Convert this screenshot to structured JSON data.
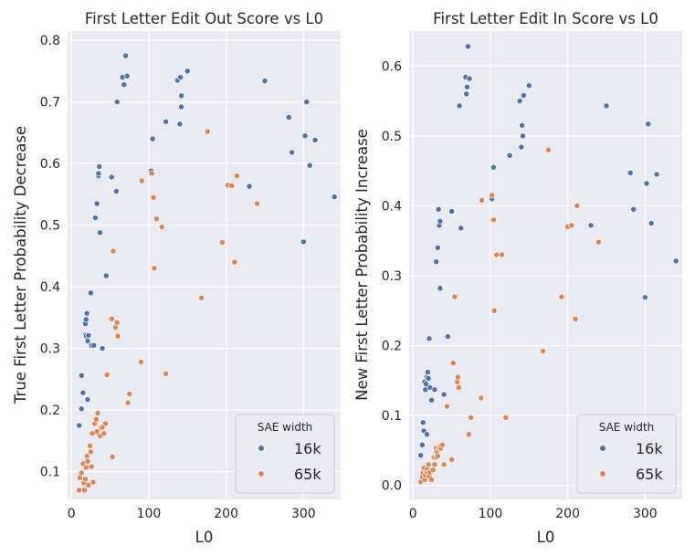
{
  "chart_data": [
    {
      "type": "scatter",
      "title": "First Letter Edit Out Score vs L0",
      "xlabel": "L0",
      "ylabel": "True First Letter Probability Decrease",
      "xlim": [
        -5,
        348
      ],
      "ylim": [
        0.055,
        0.815
      ],
      "xticks": [
        0,
        100,
        200,
        300
      ],
      "yticks": [
        0.1,
        0.2,
        0.3,
        0.4,
        0.5,
        0.6,
        0.7,
        0.8
      ],
      "ytick_labels": [
        "0.1",
        "0.2",
        "0.3",
        "0.4",
        "0.5",
        "0.6",
        "0.7",
        "0.8"
      ],
      "grid": true,
      "legend": {
        "title": "SAE width",
        "placement": "lower-right"
      },
      "series": [
        {
          "name": "16k",
          "color": "#4c72b0",
          "points": [
            [
              10,
              0.175
            ],
            [
              13,
              0.202
            ],
            [
              13,
              0.256
            ],
            [
              15,
              0.228
            ],
            [
              18,
              0.322
            ],
            [
              18,
              0.34
            ],
            [
              19,
              0.347
            ],
            [
              20,
              0.357
            ],
            [
              19,
              0.32
            ],
            [
              21,
              0.312
            ],
            [
              21,
              0.217
            ],
            [
              22,
              0.321
            ],
            [
              25,
              0.39
            ],
            [
              26,
              0.305
            ],
            [
              29,
              0.305
            ],
            [
              31,
              0.512
            ],
            [
              33,
              0.535
            ],
            [
              35,
              0.58
            ],
            [
              35,
              0.584
            ],
            [
              36,
              0.595
            ],
            [
              37,
              0.488
            ],
            [
              40,
              0.3
            ],
            [
              45,
              0.418
            ],
            [
              52,
              0.578
            ],
            [
              58,
              0.555
            ],
            [
              59,
              0.7
            ],
            [
              66,
              0.74
            ],
            [
              68,
              0.728
            ],
            [
              70,
              0.775
            ],
            [
              72,
              0.742
            ],
            [
              103,
              0.588
            ],
            [
              105,
              0.64
            ],
            [
              122,
              0.668
            ],
            [
              137,
              0.735
            ],
            [
              140,
              0.664
            ],
            [
              141,
              0.74
            ],
            [
              142,
              0.71
            ],
            [
              142,
              0.692
            ],
            [
              150,
              0.75
            ],
            [
              230,
              0.563
            ],
            [
              250,
              0.734
            ],
            [
              281,
              0.675
            ],
            [
              285,
              0.618
            ],
            [
              300,
              0.473
            ],
            [
              302,
              0.645
            ],
            [
              304,
              0.7
            ],
            [
              308,
              0.597
            ],
            [
              315,
              0.638
            ],
            [
              340,
              0.546
            ]
          ]
        },
        {
          "name": "65k",
          "color": "#dd8452",
          "points": [
            [
              10,
              0.07
            ],
            [
              11,
              0.09
            ],
            [
              13,
              0.098
            ],
            [
              15,
              0.113
            ],
            [
              16,
              0.082
            ],
            [
              17,
              0.07
            ],
            [
              18,
              0.088
            ],
            [
              19,
              0.107
            ],
            [
              20,
              0.125
            ],
            [
              21,
              0.117
            ],
            [
              22,
              0.078
            ],
            [
              24,
              0.142
            ],
            [
              25,
              0.132
            ],
            [
              26,
              0.108
            ],
            [
              27,
              0.162
            ],
            [
              28,
              0.083
            ],
            [
              30,
              0.178
            ],
            [
              32,
              0.185
            ],
            [
              33,
              0.165
            ],
            [
              34,
              0.195
            ],
            [
              37,
              0.158
            ],
            [
              38,
              0.171
            ],
            [
              40,
              0.172
            ],
            [
              42,
              0.162
            ],
            [
              44,
              0.178
            ],
            [
              46,
              0.257
            ],
            [
              52,
              0.348
            ],
            [
              53,
              0.124
            ],
            [
              54,
              0.458
            ],
            [
              57,
              0.334
            ],
            [
              59,
              0.342
            ],
            [
              60,
              0.32
            ],
            [
              73,
              0.212
            ],
            [
              75,
              0.226
            ],
            [
              90,
              0.278
            ],
            [
              91,
              0.572
            ],
            [
              104,
              0.584
            ],
            [
              106,
              0.545
            ],
            [
              107,
              0.43
            ],
            [
              110,
              0.51
            ],
            [
              117,
              0.497
            ],
            [
              122,
              0.259
            ],
            [
              168,
              0.382
            ],
            [
              176,
              0.652
            ],
            [
              195,
              0.472
            ],
            [
              202,
              0.565
            ],
            [
              207,
              0.564
            ],
            [
              211,
              0.44
            ],
            [
              214,
              0.58
            ],
            [
              240,
              0.535
            ]
          ]
        }
      ]
    },
    {
      "type": "scatter",
      "title": "First Letter Edit In Score vs L0",
      "xlabel": "L0",
      "ylabel": "New First Letter Probability Increase",
      "xlim": [
        -5,
        348
      ],
      "ylim": [
        -0.02,
        0.65
      ],
      "xticks": [
        0,
        100,
        200,
        300
      ],
      "yticks": [
        0.0,
        0.1,
        0.2,
        0.3,
        0.4,
        0.5,
        0.6
      ],
      "ytick_labels": [
        "0.0",
        "0.1",
        "0.2",
        "0.3",
        "0.4",
        "0.5",
        "0.6"
      ],
      "grid": true,
      "legend": {
        "title": "SAE width",
        "placement": "lower-right"
      },
      "series": [
        {
          "name": "16k",
          "color": "#4c72b0",
          "points": [
            [
              10,
              0.043
            ],
            [
              12,
              0.058
            ],
            [
              13,
              0.09
            ],
            [
              14,
              0.078
            ],
            [
              15,
              0.148
            ],
            [
              16,
              0.137
            ],
            [
              17,
              0.145
            ],
            [
              18,
              0.155
            ],
            [
              18,
              0.073
            ],
            [
              19,
              0.162
            ],
            [
              20,
              0.153
            ],
            [
              21,
              0.21
            ],
            [
              22,
              0.14
            ],
            [
              24,
              0.122
            ],
            [
              28,
              0.137
            ],
            [
              30,
              0.32
            ],
            [
              32,
              0.34
            ],
            [
              33,
              0.395
            ],
            [
              34,
              0.372
            ],
            [
              35,
              0.282
            ],
            [
              35,
              0.378
            ],
            [
              40,
              0.13
            ],
            [
              45,
              0.213
            ],
            [
              50,
              0.392
            ],
            [
              60,
              0.543
            ],
            [
              62,
              0.368
            ],
            [
              68,
              0.584
            ],
            [
              69,
              0.56
            ],
            [
              70,
              0.57
            ],
            [
              71,
              0.628
            ],
            [
              73,
              0.582
            ],
            [
              102,
              0.41
            ],
            [
              104,
              0.455
            ],
            [
              125,
              0.472
            ],
            [
              138,
              0.55
            ],
            [
              140,
              0.484
            ],
            [
              141,
              0.515
            ],
            [
              142,
              0.5
            ],
            [
              143,
              0.558
            ],
            [
              150,
              0.572
            ],
            [
              230,
              0.372
            ],
            [
              250,
              0.543
            ],
            [
              281,
              0.447
            ],
            [
              285,
              0.395
            ],
            [
              300,
              0.269
            ],
            [
              302,
              0.432
            ],
            [
              304,
              0.517
            ],
            [
              308,
              0.375
            ],
            [
              315,
              0.445
            ],
            [
              340,
              0.321
            ]
          ]
        },
        {
          "name": "65k",
          "color": "#dd8452",
          "points": [
            [
              10,
              0.005
            ],
            [
              12,
              0.012
            ],
            [
              13,
              0.018
            ],
            [
              14,
              0.025
            ],
            [
              15,
              0.008
            ],
            [
              16,
              0.015
            ],
            [
              17,
              0.02
            ],
            [
              18,
              0.023
            ],
            [
              19,
              0.018
            ],
            [
              20,
              0.03
            ],
            [
              21,
              0.013
            ],
            [
              22,
              0.019
            ],
            [
              24,
              0.008
            ],
            [
              26,
              0.022
            ],
            [
              27,
              0.04
            ],
            [
              28,
              0.03
            ],
            [
              30,
              0.04
            ],
            [
              30,
              0.053
            ],
            [
              31,
              0.048
            ],
            [
              32,
              0.042
            ],
            [
              34,
              0.052
            ],
            [
              35,
              0.056
            ],
            [
              36,
              0.053
            ],
            [
              38,
              0.058
            ],
            [
              40,
              0.03
            ],
            [
              44,
              0.113
            ],
            [
              50,
              0.037
            ],
            [
              52,
              0.175
            ],
            [
              54,
              0.27
            ],
            [
              57,
              0.148
            ],
            [
              58,
              0.155
            ],
            [
              59,
              0.14
            ],
            [
              72,
              0.073
            ],
            [
              75,
              0.097
            ],
            [
              88,
              0.125
            ],
            [
              89,
              0.408
            ],
            [
              102,
              0.415
            ],
            [
              104,
              0.38
            ],
            [
              105,
              0.25
            ],
            [
              108,
              0.33
            ],
            [
              115,
              0.33
            ],
            [
              120,
              0.097
            ],
            [
              168,
              0.192
            ],
            [
              175,
              0.48
            ],
            [
              192,
              0.27
            ],
            [
              200,
              0.37
            ],
            [
              205,
              0.372
            ],
            [
              210,
              0.238
            ],
            [
              212,
              0.4
            ],
            [
              240,
              0.348
            ]
          ]
        }
      ]
    }
  ]
}
